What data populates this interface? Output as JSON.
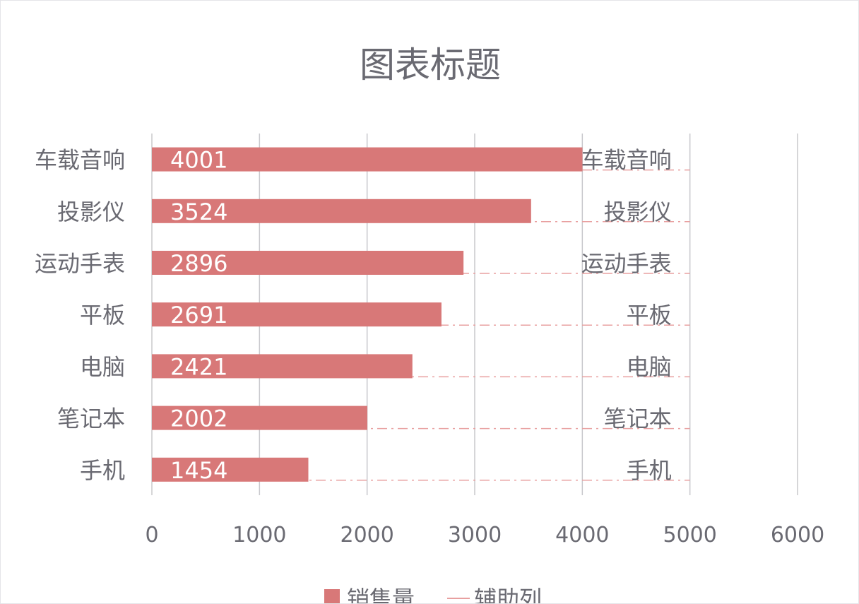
{
  "chart_data": {
    "type": "bar",
    "orientation": "horizontal",
    "title": "图表标题",
    "categories": [
      "车载音响",
      "投影仪",
      "运动手表",
      "平板",
      "电脑",
      "笔记本",
      "手机"
    ],
    "series": [
      {
        "name": "销售量",
        "values": [
          4001,
          3524,
          2896,
          2691,
          2421,
          2002,
          1454
        ],
        "color": "#d87878"
      },
      {
        "name": "辅助列",
        "values": [
          5000,
          5000,
          5000,
          5000,
          5000,
          5000,
          5000
        ],
        "color": "#e8a0a0"
      }
    ],
    "xlim": [
      0,
      6000
    ],
    "x_ticks": [
      0,
      1000,
      2000,
      3000,
      4000,
      5000,
      6000
    ],
    "grid": true,
    "legend": "bottom"
  }
}
